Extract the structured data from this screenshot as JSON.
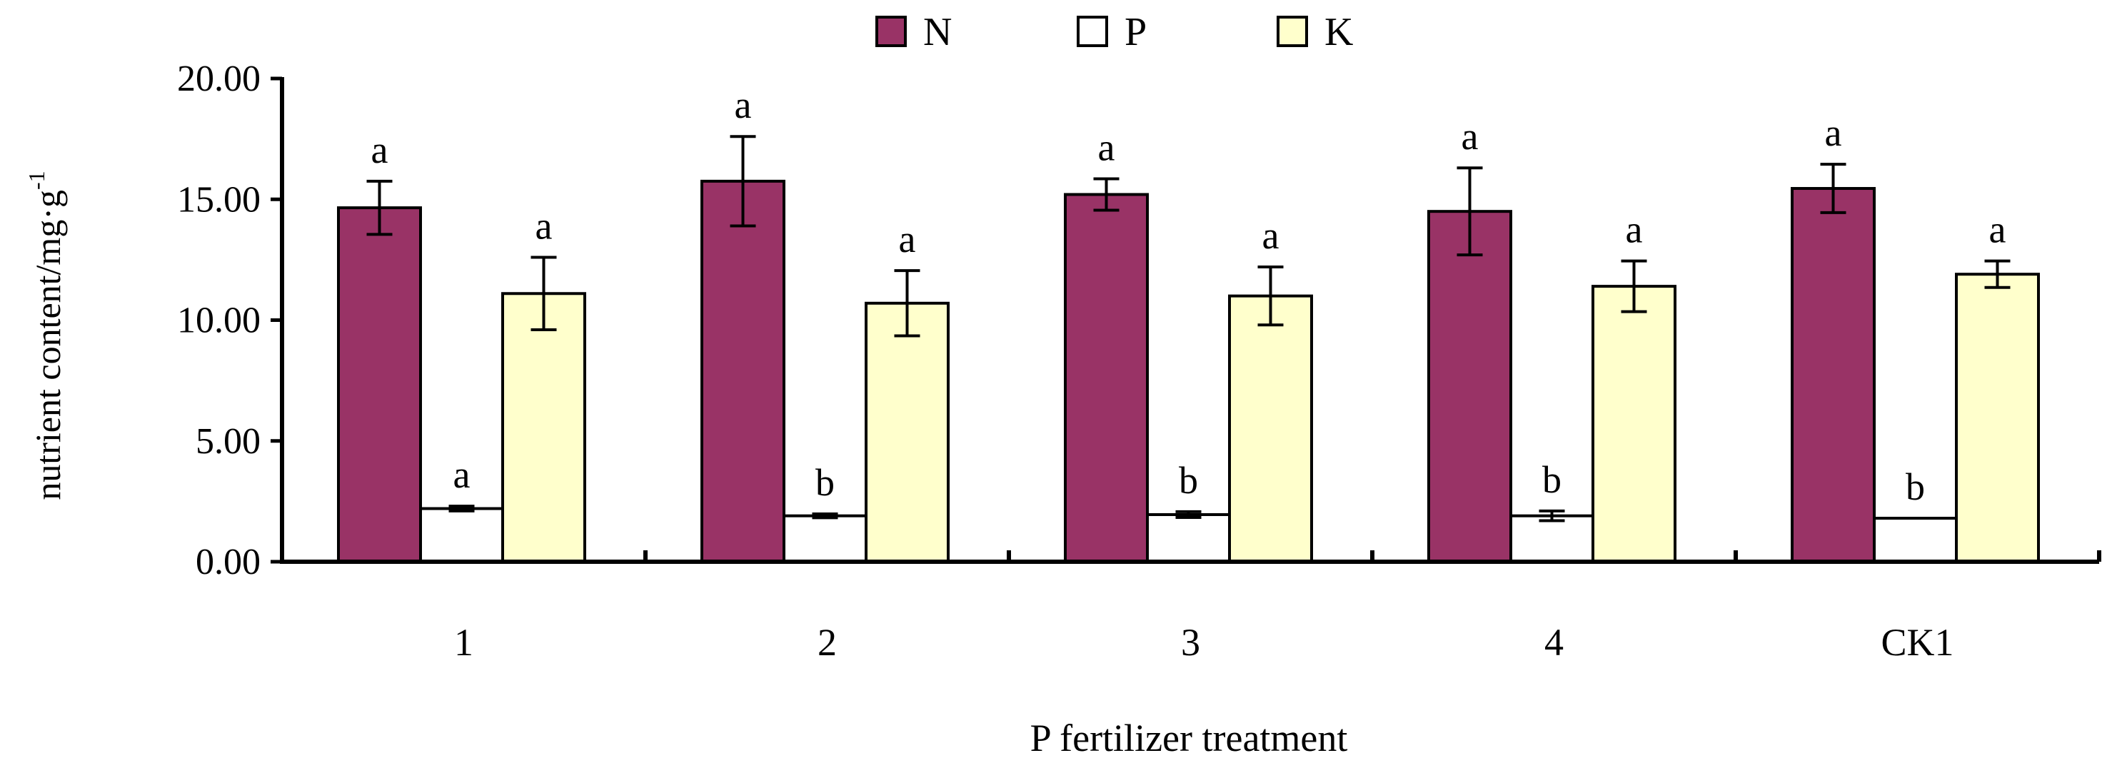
{
  "chart_data": {
    "type": "bar",
    "xlabel": "P fertilizer treatment",
    "ylabel": "nutrient content/mg·g",
    "ylabel_sup": "-1",
    "ylim": [
      0,
      20
    ],
    "yticks": [
      0,
      5,
      10,
      15,
      20
    ],
    "ytick_labels": [
      "0.00",
      "5.00",
      "10.00",
      "15.00",
      "20.00"
    ],
    "categories": [
      "1",
      "2",
      "3",
      "4",
      "CK1"
    ],
    "legend_position": "top-center",
    "series": [
      {
        "name": "N",
        "color": "#993366",
        "values": [
          14.65,
          15.75,
          15.2,
          14.5,
          15.45
        ],
        "errors": [
          1.1,
          1.85,
          0.65,
          1.8,
          1.0
        ],
        "labels": [
          "a",
          "a",
          "a",
          "a",
          "a"
        ]
      },
      {
        "name": "P",
        "color": "#ffffff",
        "values": [
          2.2,
          1.9,
          1.95,
          1.9,
          1.8
        ],
        "errors": [
          0.1,
          0.08,
          0.12,
          0.2,
          0.0
        ],
        "labels": [
          "a",
          "b",
          "b",
          "b",
          "b"
        ]
      },
      {
        "name": "K",
        "color": "#ffffcc",
        "values": [
          11.1,
          10.7,
          11.0,
          11.4,
          11.9
        ],
        "errors": [
          1.5,
          1.35,
          1.2,
          1.05,
          0.55
        ],
        "labels": [
          "a",
          "a",
          "a",
          "a",
          "a"
        ]
      }
    ]
  }
}
